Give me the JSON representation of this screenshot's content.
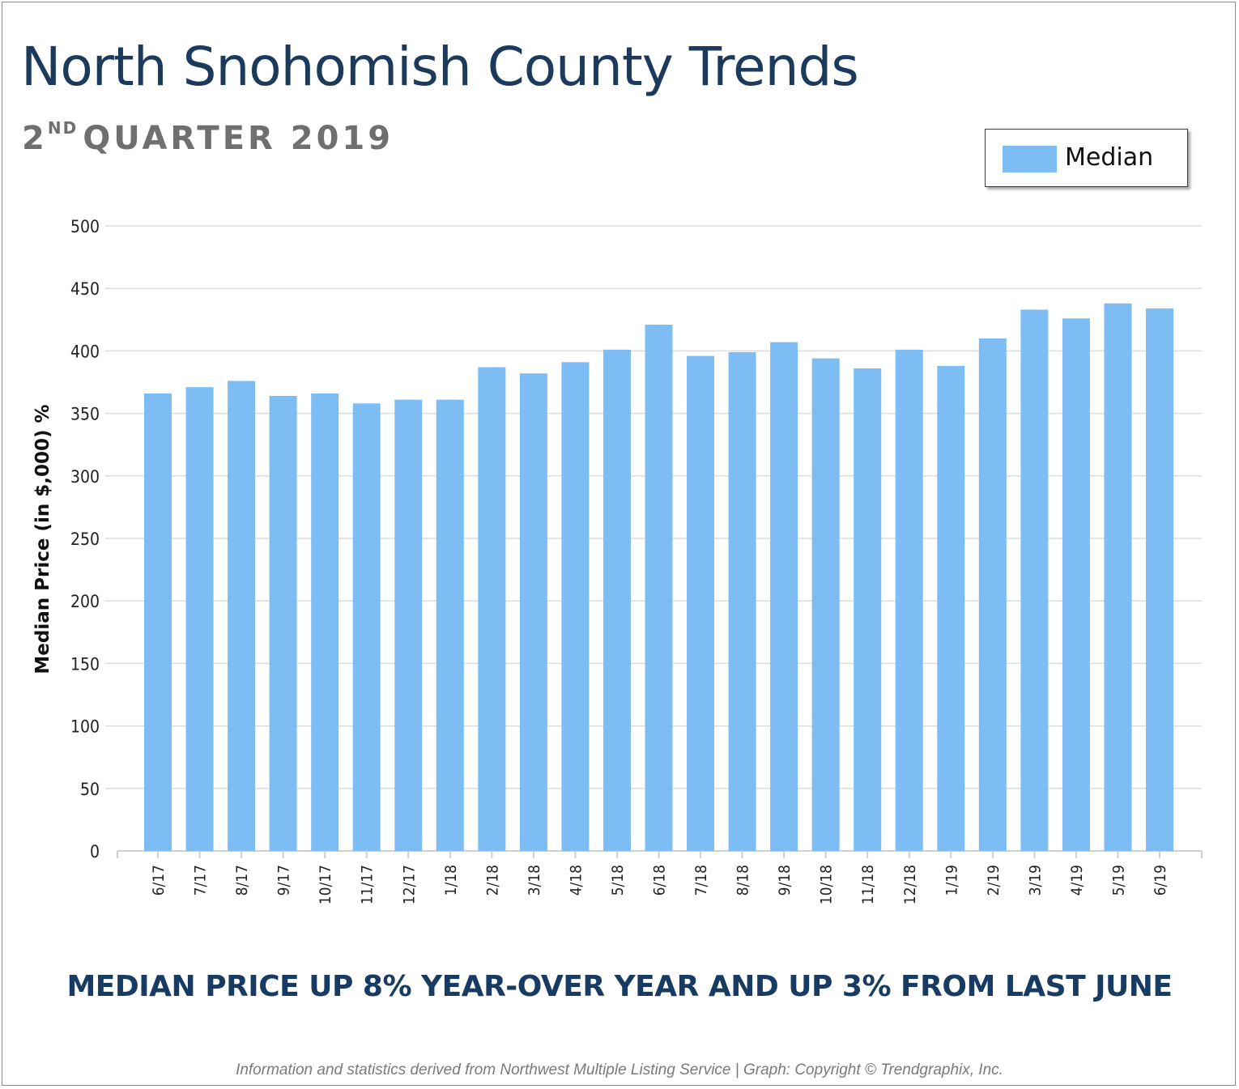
{
  "header": {
    "title": "North Snohomish County Trends",
    "subtitle_number": "2",
    "subtitle_suffix": "ND",
    "subtitle_rest": "QUARTER 2019"
  },
  "headline": "MEDIAN PRICE UP 8% YEAR-OVER YEAR AND UP 3% FROM LAST JUNE",
  "footer": "Information and statistics derived from Northwest Multiple Listing Service  |  Graph: Copyright © Trendgraphix, Inc.",
  "colors": {
    "bar": "#7dbdf3",
    "title": "#1b3a5c",
    "subtitle": "#6f6f6f",
    "headline": "#173b62",
    "grid": "#dcdcdc"
  },
  "chart_data": {
    "type": "bar",
    "ylabel": "Median Price (in $,000) %",
    "xlabel": "",
    "ylim": [
      0,
      500
    ],
    "yticks": [
      0,
      50,
      100,
      150,
      200,
      250,
      300,
      350,
      400,
      450,
      500
    ],
    "grid": true,
    "legend_position": "top-right",
    "categories": [
      "6/17",
      "7/17",
      "8/17",
      "9/17",
      "10/17",
      "11/17",
      "12/17",
      "1/18",
      "2/18",
      "3/18",
      "4/18",
      "5/18",
      "6/18",
      "7/18",
      "8/18",
      "9/18",
      "10/18",
      "11/18",
      "12/18",
      "1/19",
      "2/19",
      "3/19",
      "4/19",
      "5/19",
      "6/19"
    ],
    "series": [
      {
        "name": "Median",
        "values": [
          366,
          371,
          376,
          364,
          366,
          358,
          361,
          361,
          387,
          382,
          391,
          401,
          421,
          396,
          399,
          407,
          394,
          386,
          401,
          388,
          410,
          433,
          426,
          438,
          434
        ]
      }
    ]
  }
}
